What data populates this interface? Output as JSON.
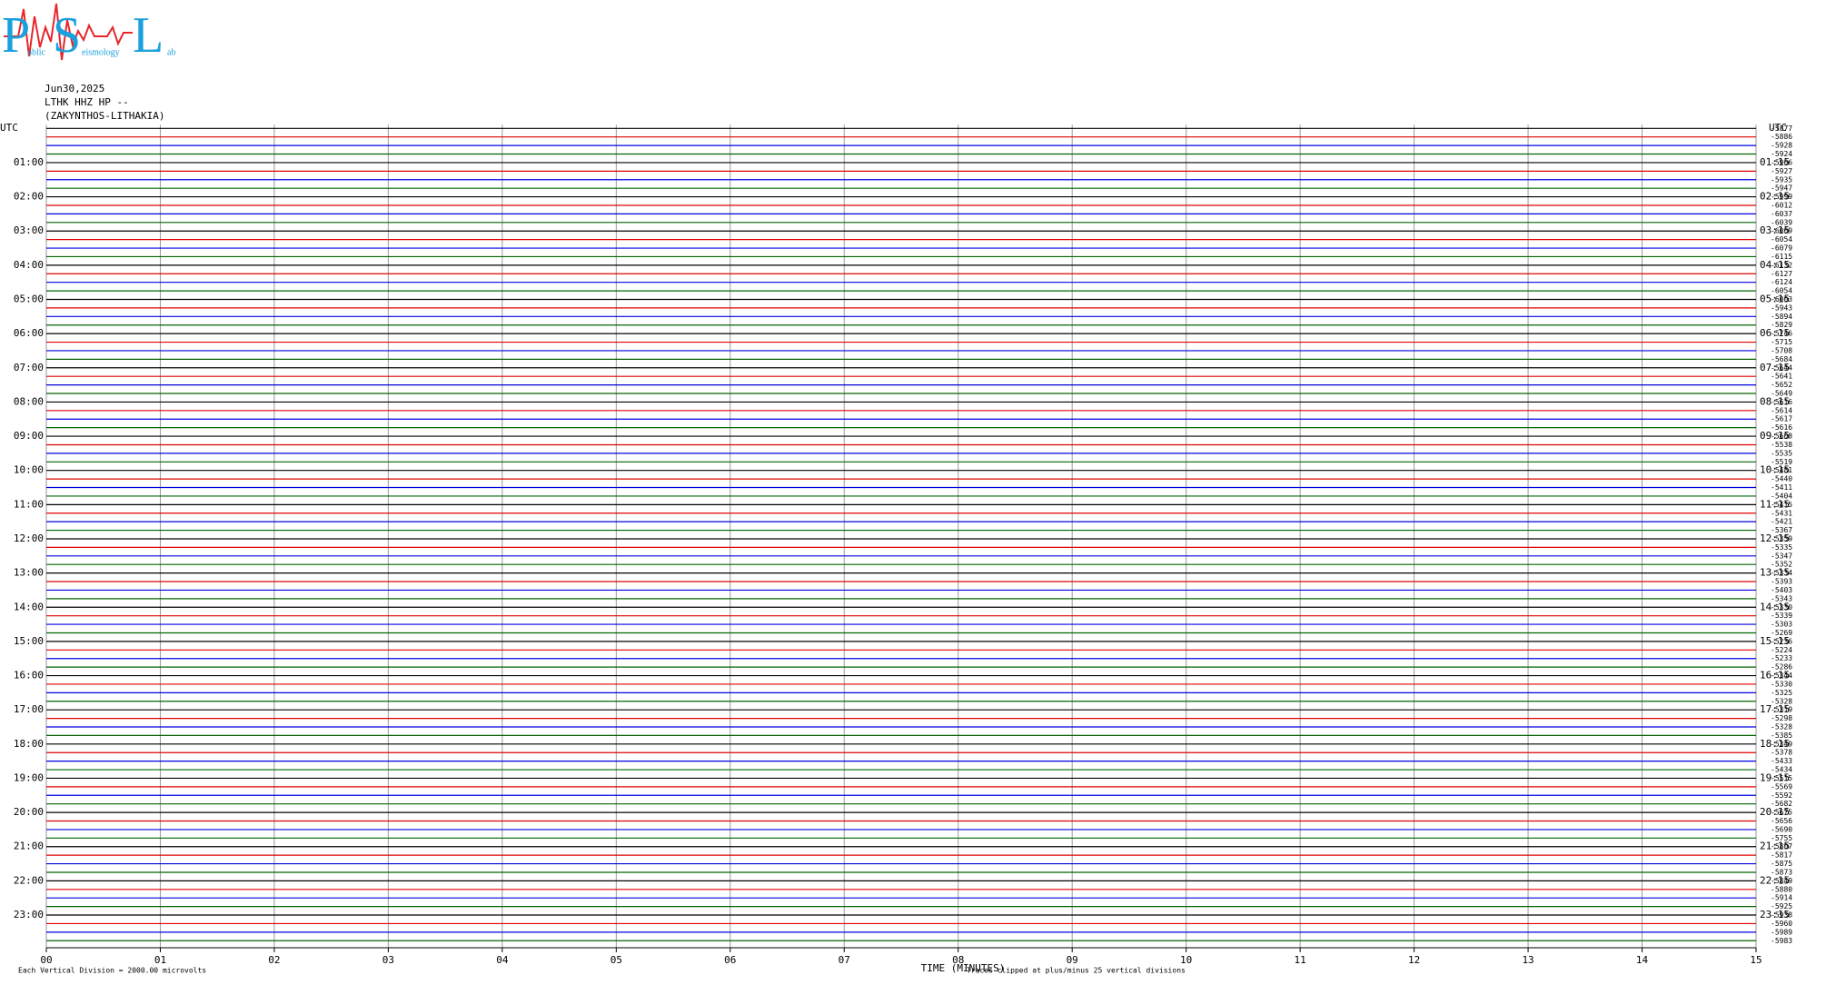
{
  "chart_data": {
    "type": "helicorder",
    "logo": {
      "letters": [
        "P",
        "S",
        "L"
      ],
      "words": [
        "ublic",
        "eismology",
        "ab"
      ]
    },
    "title": "Jun30,2025",
    "subtitle": [
      "LTHK HHZ HP --",
      "(ZAKYNTHOS-LITHAKIA)"
    ],
    "time_zone_label": "UTC",
    "x_label": "TIME (MINUTES)",
    "notes": [
      "Each Vertical Division = 2000.00 microvolts",
      "Traces clipped at plus/minus 25 vertical divisions"
    ],
    "xlim": [
      0,
      15
    ],
    "xticks": [
      {
        "value": 0,
        "label": "00"
      },
      {
        "value": 1,
        "label": "01"
      },
      {
        "value": 2,
        "label": "02"
      },
      {
        "value": 3,
        "label": "03"
      },
      {
        "value": 4,
        "label": "04"
      },
      {
        "value": 5,
        "label": "05"
      },
      {
        "value": 6,
        "label": "06"
      },
      {
        "value": 7,
        "label": "07"
      },
      {
        "value": 8,
        "label": "08"
      },
      {
        "value": 9,
        "label": "09"
      },
      {
        "value": 10,
        "label": "10"
      },
      {
        "value": 11,
        "label": "11"
      },
      {
        "value": 12,
        "label": "12"
      },
      {
        "value": 13,
        "label": "13"
      },
      {
        "value": 14,
        "label": "14"
      },
      {
        "value": 15,
        "label": "15"
      }
    ],
    "grid": true,
    "trace_colors": [
      "#000000",
      "#e00000",
      "#0000e0",
      "#006400"
    ],
    "row_labels_left": [
      "01:00",
      "02:00",
      "03:00",
      "04:00",
      "05:00",
      "06:00",
      "07:00",
      "08:00",
      "09:00",
      "10:00",
      "11:00",
      "12:00",
      "13:00",
      "14:00",
      "15:00",
      "16:00",
      "17:00",
      "18:00",
      "19:00",
      "20:00",
      "21:00",
      "22:00",
      "23:00"
    ],
    "row_labels_right": [
      "01:15",
      "02:15",
      "03:15",
      "04:15",
      "05:15",
      "06:15",
      "07:15",
      "08:15",
      "09:15",
      "10:15",
      "11:15",
      "12:15",
      "13:15",
      "14:15",
      "15:15",
      "16:15",
      "17:15",
      "18:15",
      "19:15",
      "20:15",
      "21:15",
      "22:15",
      "23:15"
    ],
    "trace_offsets": [
      -5877,
      -5886,
      -5928,
      -5924,
      -5906,
      -5927,
      -5935,
      -5947,
      -5999,
      -6012,
      -6037,
      -6039,
      -6069,
      -6054,
      -6079,
      -6115,
      -6132,
      -6127,
      -6124,
      -6054,
      -6003,
      -5943,
      -5894,
      -5829,
      -5746,
      -5715,
      -5708,
      -5684,
      -5644,
      -5641,
      -5652,
      -5649,
      -5616,
      -5614,
      -5617,
      -5616,
      -5608,
      -5538,
      -5535,
      -5519,
      -5481,
      -5440,
      -5411,
      -5404,
      -5415,
      -5431,
      -5421,
      -5367,
      -5359,
      -5335,
      -5347,
      -5352,
      -5334,
      -5393,
      -5403,
      -5343,
      -5330,
      -5339,
      -5303,
      -5269,
      -5236,
      -5224,
      -5233,
      -5286,
      -5344,
      -5330,
      -5325,
      -5328,
      -5319,
      -5298,
      -5328,
      -5385,
      -5349,
      -5378,
      -5433,
      -5434,
      -5515,
      -5569,
      -5592,
      -5682,
      -5675,
      -5656,
      -5690,
      -5755,
      -5807,
      -5817,
      -5875,
      -5873,
      -5849,
      -5880,
      -5914,
      -5925,
      -5938,
      -5960,
      -5989,
      -5983
    ]
  }
}
